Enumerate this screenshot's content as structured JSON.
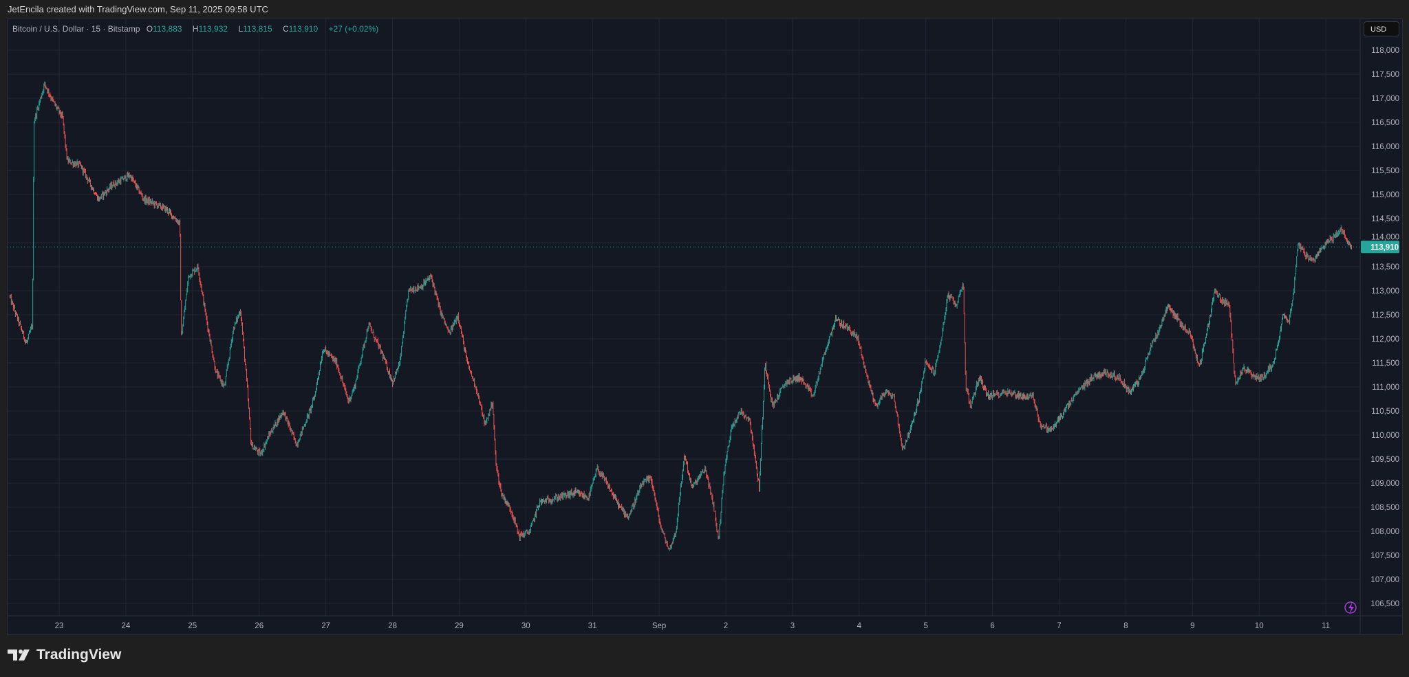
{
  "header": {
    "attribution": "JetEncila created with TradingView.com, Sep 11, 2025 09:58 UTC"
  },
  "legend": {
    "symbol": "Bitcoin / U.S. Dollar · 15 · Bitstamp",
    "o_label": "O",
    "o": "113,883",
    "h_label": "H",
    "h": "113,932",
    "l_label": "L",
    "l": "113,815",
    "c_label": "C",
    "c": "113,910",
    "change": "+27 (+0.02%)"
  },
  "currency_button": "USD",
  "footer": {
    "brand": "TradingView"
  },
  "colors": {
    "up": "#26a69a",
    "down": "#ef5350",
    "bg": "#141823",
    "grid": "#222633"
  },
  "chart_data": {
    "type": "candlestick",
    "title": "Bitcoin / U.S. Dollar · 15 · Bitstamp",
    "interval_minutes": 15,
    "ylim": [
      106250,
      118300
    ],
    "yticks": [
      "118,000",
      "117,500",
      "117,000",
      "116,500",
      "116,000",
      "115,500",
      "115,000",
      "114,500",
      "114,000",
      "113,500",
      "113,000",
      "112,500",
      "112,000",
      "111,500",
      "111,000",
      "110,500",
      "110,000",
      "109,500",
      "109,000",
      "108,500",
      "108,000",
      "107,500",
      "107,000",
      "106,500"
    ],
    "ytick_values": [
      118000,
      117500,
      117000,
      116500,
      116000,
      115500,
      115000,
      114500,
      114000,
      113500,
      113000,
      112500,
      112000,
      111500,
      111000,
      110500,
      110000,
      109500,
      109000,
      108500,
      108000,
      107500,
      107000,
      106500
    ],
    "xticks": [
      "23",
      "24",
      "25",
      "26",
      "27",
      "28",
      "29",
      "30",
      "31",
      "Sep",
      "2",
      "3",
      "4",
      "5",
      "6",
      "7",
      "8",
      "9",
      "10",
      "11"
    ],
    "x_unit": "days since Aug 23 00:00",
    "last_price": 113910,
    "last_price_label": "113,910",
    "approx_close_path": [
      [
        -0.75,
        112900
      ],
      [
        -0.49,
        111900
      ],
      [
        -0.4,
        112300
      ],
      [
        -0.38,
        116500
      ],
      [
        -0.28,
        117000
      ],
      [
        -0.22,
        117300
      ],
      [
        -0.08,
        116900
      ],
      [
        0.05,
        116600
      ],
      [
        0.12,
        115700
      ],
      [
        0.32,
        115600
      ],
      [
        0.59,
        114900
      ],
      [
        0.8,
        115200
      ],
      [
        1.06,
        115400
      ],
      [
        1.27,
        114900
      ],
      [
        1.6,
        114700
      ],
      [
        1.81,
        114400
      ],
      [
        1.83,
        112000
      ],
      [
        1.94,
        113300
      ],
      [
        2.08,
        113500
      ],
      [
        2.21,
        112400
      ],
      [
        2.35,
        111300
      ],
      [
        2.48,
        111000
      ],
      [
        2.61,
        112200
      ],
      [
        2.72,
        112600
      ],
      [
        2.82,
        111000
      ],
      [
        2.88,
        109800
      ],
      [
        3.02,
        109600
      ],
      [
        3.15,
        110000
      ],
      [
        3.36,
        110500
      ],
      [
        3.56,
        109800
      ],
      [
        3.76,
        110500
      ],
      [
        3.83,
        110800
      ],
      [
        3.96,
        111800
      ],
      [
        4.16,
        111500
      ],
      [
        4.34,
        110700
      ],
      [
        4.43,
        111000
      ],
      [
        4.64,
        112300
      ],
      [
        4.84,
        111700
      ],
      [
        5.0,
        111100
      ],
      [
        5.11,
        111500
      ],
      [
        5.24,
        113000
      ],
      [
        5.44,
        113100
      ],
      [
        5.58,
        113300
      ],
      [
        5.71,
        112600
      ],
      [
        5.85,
        112100
      ],
      [
        5.98,
        112500
      ],
      [
        6.12,
        111500
      ],
      [
        6.25,
        111000
      ],
      [
        6.39,
        110200
      ],
      [
        6.5,
        110700
      ],
      [
        6.55,
        109400
      ],
      [
        6.63,
        108800
      ],
      [
        6.79,
        108400
      ],
      [
        6.9,
        107900
      ],
      [
        7.06,
        108000
      ],
      [
        7.2,
        108600
      ],
      [
        7.47,
        108700
      ],
      [
        7.74,
        108800
      ],
      [
        7.94,
        108700
      ],
      [
        8.07,
        109300
      ],
      [
        8.21,
        109000
      ],
      [
        8.41,
        108500
      ],
      [
        8.54,
        108300
      ],
      [
        8.75,
        109000
      ],
      [
        8.88,
        109100
      ],
      [
        9.02,
        108100
      ],
      [
        9.15,
        107600
      ],
      [
        9.25,
        108000
      ],
      [
        9.38,
        109600
      ],
      [
        9.49,
        108900
      ],
      [
        9.69,
        109300
      ],
      [
        9.82,
        108500
      ],
      [
        9.89,
        107800
      ],
      [
        9.97,
        109200
      ],
      [
        10.09,
        110200
      ],
      [
        10.23,
        110500
      ],
      [
        10.36,
        110300
      ],
      [
        10.5,
        108900
      ],
      [
        10.59,
        111500
      ],
      [
        10.7,
        110600
      ],
      [
        10.9,
        111100
      ],
      [
        11.11,
        111200
      ],
      [
        11.31,
        110800
      ],
      [
        11.44,
        111500
      ],
      [
        11.64,
        112400
      ],
      [
        11.85,
        112200
      ],
      [
        11.98,
        112000
      ],
      [
        12.12,
        111200
      ],
      [
        12.25,
        110600
      ],
      [
        12.39,
        110900
      ],
      [
        12.52,
        110800
      ],
      [
        12.65,
        109700
      ],
      [
        12.79,
        110200
      ],
      [
        12.92,
        110900
      ],
      [
        12.99,
        111500
      ],
      [
        13.13,
        111300
      ],
      [
        13.23,
        112000
      ],
      [
        13.33,
        112900
      ],
      [
        13.46,
        112700
      ],
      [
        13.56,
        113200
      ],
      [
        13.6,
        111000
      ],
      [
        13.67,
        110600
      ],
      [
        13.8,
        111200
      ],
      [
        13.94,
        110800
      ],
      [
        14.2,
        110900
      ],
      [
        14.47,
        110800
      ],
      [
        14.61,
        110800
      ],
      [
        14.72,
        110200
      ],
      [
        14.88,
        110100
      ],
      [
        15.08,
        110500
      ],
      [
        15.28,
        110900
      ],
      [
        15.49,
        111200
      ],
      [
        15.69,
        111300
      ],
      [
        15.89,
        111200
      ],
      [
        16.06,
        110900
      ],
      [
        16.23,
        111200
      ],
      [
        16.36,
        111800
      ],
      [
        16.5,
        112200
      ],
      [
        16.63,
        112700
      ],
      [
        16.83,
        112300
      ],
      [
        16.97,
        112100
      ],
      [
        17.1,
        111400
      ],
      [
        17.24,
        112300
      ],
      [
        17.33,
        113000
      ],
      [
        17.44,
        112800
      ],
      [
        17.55,
        112700
      ],
      [
        17.64,
        111100
      ],
      [
        17.78,
        111400
      ],
      [
        17.91,
        111200
      ],
      [
        18.05,
        111200
      ],
      [
        18.22,
        111500
      ],
      [
        18.36,
        112500
      ],
      [
        18.45,
        112400
      ],
      [
        18.52,
        113000
      ],
      [
        18.58,
        114000
      ],
      [
        18.72,
        113700
      ],
      [
        18.81,
        113600
      ],
      [
        18.99,
        114000
      ],
      [
        19.12,
        114100
      ],
      [
        19.23,
        114300
      ],
      [
        19.32,
        114000
      ],
      [
        19.39,
        113910
      ]
    ],
    "grid": true
  }
}
